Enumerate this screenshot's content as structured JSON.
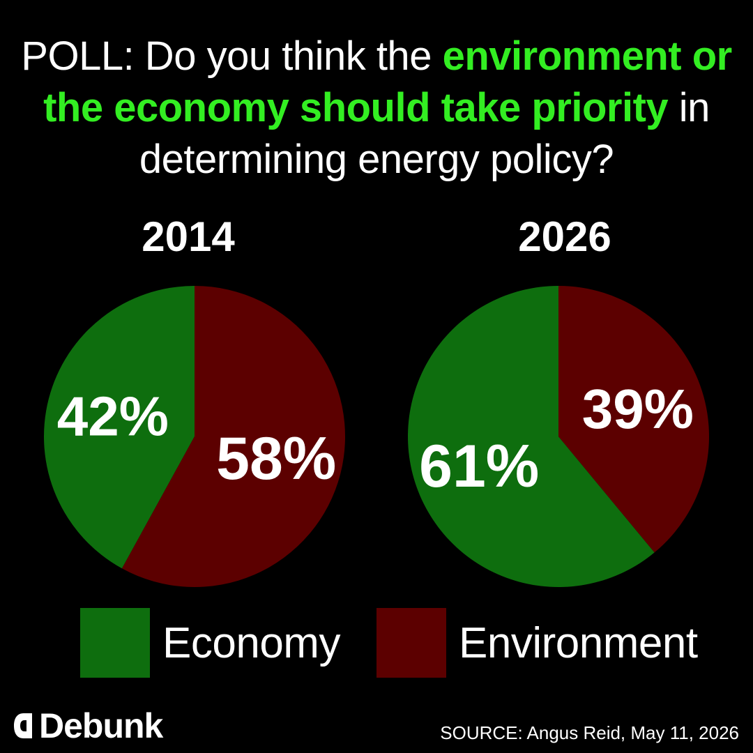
{
  "title": {
    "part1": "POLL: Do you think the ",
    "highlight": "environment or the economy should take priority",
    "part2": " in determining energy policy?"
  },
  "colors": {
    "economy": "#0e6e0e",
    "environment": "#5c0000",
    "highlight": "#33ee22",
    "background": "#000000"
  },
  "chart_data": [
    {
      "type": "pie",
      "title": "2014",
      "labels": [
        "Economy",
        "Environment"
      ],
      "values": [
        42,
        58
      ],
      "value_labels": [
        "42%",
        "58%"
      ]
    },
    {
      "type": "pie",
      "title": "2026",
      "labels": [
        "Economy",
        "Environment"
      ],
      "values": [
        61,
        39
      ],
      "value_labels": [
        "61%",
        "39%"
      ]
    }
  ],
  "legend": {
    "placement": "bottom",
    "items": [
      {
        "label": "Economy",
        "color": "#0e6e0e"
      },
      {
        "label": "Environment",
        "color": "#5c0000"
      }
    ]
  },
  "brand": {
    "logo_text": "Debunk",
    "logo_icon": "reverse-d-icon"
  },
  "source": "SOURCE: Angus Reid, May 11, 2026"
}
